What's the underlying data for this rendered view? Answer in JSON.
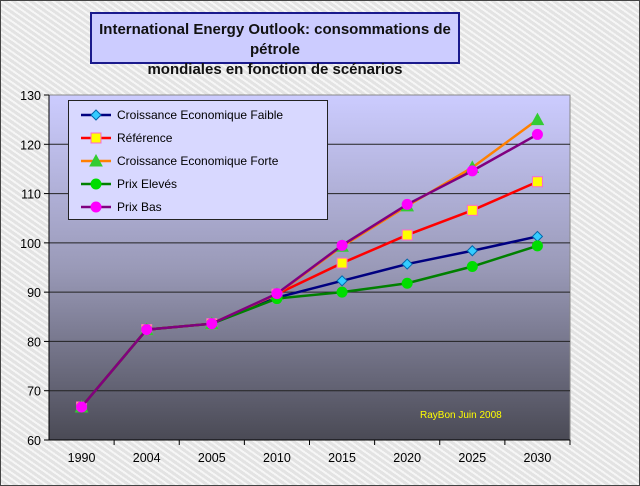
{
  "chart_data": {
    "type": "line",
    "title": "International Energy Outlook: consommations de pétrole mondiales en fonction de scénarios",
    "title_line1": "International Energy Outlook: consommations de pétrole",
    "title_line2": "mondiales en fonction de scénarios",
    "categories": [
      "1990",
      "2004",
      "2005",
      "2010",
      "2015",
      "2020",
      "2025",
      "2030"
    ],
    "ylim": [
      60,
      130
    ],
    "yticks": [
      60,
      70,
      80,
      90,
      100,
      110,
      120,
      130
    ],
    "grid": true,
    "legend_placement": "top-left",
    "annotation": "RayBon Juin 2008",
    "series": [
      {
        "name": "Croissance Economique Faible",
        "color": "#000080",
        "marker": "diamond",
        "marker_color": "#33ccff",
        "values": [
          66.7,
          82.4,
          83.6,
          88.9,
          92.3,
          95.7,
          98.4,
          101.3
        ]
      },
      {
        "name": "Référence",
        "color": "#ff0000",
        "marker": "square",
        "marker_color": "#ffff00",
        "values": [
          66.7,
          82.4,
          83.6,
          89.6,
          95.9,
          101.6,
          106.6,
          112.4
        ]
      },
      {
        "name": "Croissance Economique Forte",
        "color": "#ff8000",
        "marker": "triangle",
        "marker_color": "#33cc33",
        "values": [
          66.7,
          82.4,
          83.6,
          89.6,
          99.3,
          107.5,
          115.3,
          125.0
        ]
      },
      {
        "name": "Prix Elevés",
        "color": "#008000",
        "marker": "circle",
        "marker_color": "#00dd00",
        "values": [
          66.7,
          82.4,
          83.6,
          88.7,
          90.0,
          91.8,
          95.2,
          99.4
        ]
      },
      {
        "name": "Prix Bas",
        "color": "#800080",
        "marker": "circle",
        "marker_color": "#ff00ff",
        "values": [
          66.7,
          82.4,
          83.6,
          89.7,
          99.5,
          107.8,
          114.6,
          122.0
        ]
      }
    ]
  }
}
